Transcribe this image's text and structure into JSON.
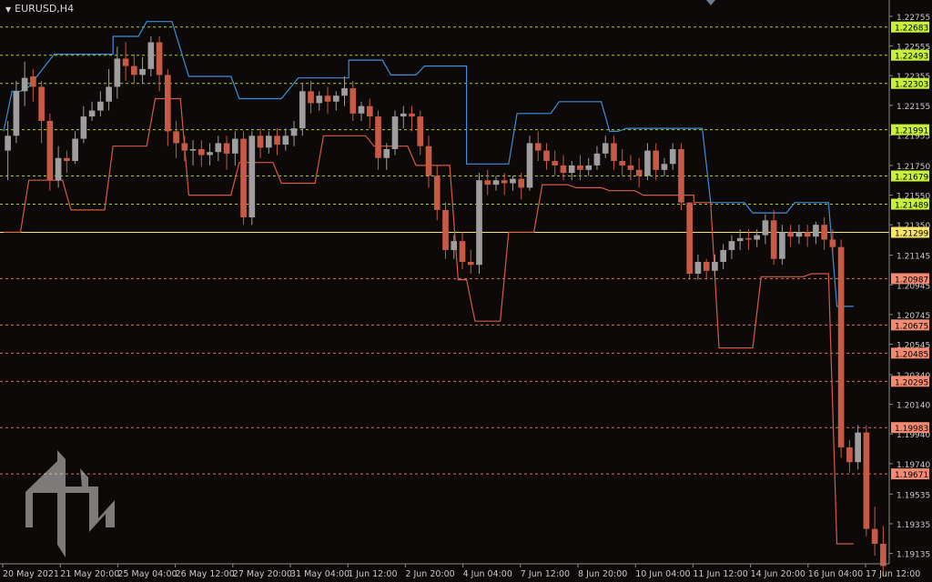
{
  "window": {
    "symbol_title": "EURUSD,H4"
  },
  "colors": {
    "background": "#0c0908",
    "bull": "#9e9e9e",
    "bear": "#c65a45",
    "upper_channel": "#3f8fd8",
    "lower_channel": "#d65a45",
    "green_level": "#c6f03a",
    "red_level": "#f28a72",
    "current_price": "#f7e56a",
    "axis_text": "#c8c8c8"
  },
  "chart_data": {
    "type": "candlestick",
    "symbol": "EURUSD",
    "timeframe": "H4",
    "ylim": [
      1.19065,
      1.22865
    ],
    "price_ticks": [
      "1.22755",
      "1.22555",
      "1.22355",
      "1.22155",
      "1.21955",
      "1.21750",
      "1.21550",
      "1.21350",
      "1.21145",
      "1.20945",
      "1.20745",
      "1.20545",
      "1.20340",
      "1.20140",
      "1.19940",
      "1.19740",
      "1.19535",
      "1.19335",
      "1.19135"
    ],
    "time_labels": [
      "20 May 2021",
      "21 May 20:00",
      "25 May 04:00",
      "26 May 12:00",
      "27 May 20:00",
      "31 May 04:00",
      "1 Jun 12:00",
      "2 Jun 20:00",
      "4 Jun 04:00",
      "7 Jun 12:00",
      "8 Jun 20:00",
      "10 Jun 04:00",
      "11 Jun 12:00",
      "14 Jun 20:00",
      "16 Jun 04:00",
      "17 Jun 12:00"
    ],
    "level_labels": {
      "green": [
        "1.22683",
        "1.22493",
        "1.22303",
        "1.21991",
        "1.21679",
        "1.21489"
      ],
      "current": "1.21299",
      "red": [
        "1.20987",
        "1.20675",
        "1.20485",
        "1.20295",
        "1.19983",
        "1.19671"
      ]
    },
    "candles": [
      [
        1.2185,
        1.2205,
        1.2195,
        1.2165
      ],
      [
        1.2195,
        1.2232,
        1.2225,
        1.219
      ],
      [
        1.2225,
        1.2245,
        1.2234,
        1.2215
      ],
      [
        1.2235,
        1.224,
        1.2228,
        1.2218
      ],
      [
        1.2228,
        1.2232,
        1.2205,
        1.219
      ],
      [
        1.2205,
        1.221,
        1.2165,
        1.2158
      ],
      [
        1.2165,
        1.2188,
        1.218,
        1.216
      ],
      [
        1.218,
        1.2185,
        1.2178,
        1.217
      ],
      [
        1.2178,
        1.2198,
        1.2193,
        1.2176
      ],
      [
        1.2193,
        1.2215,
        1.2208,
        1.219
      ],
      [
        1.2208,
        1.2218,
        1.2212,
        1.2205
      ],
      [
        1.2212,
        1.2225,
        1.2218,
        1.2208
      ],
      [
        1.2218,
        1.224,
        1.2228,
        1.2212
      ],
      [
        1.2228,
        1.2255,
        1.2247,
        1.222
      ],
      [
        1.2247,
        1.2258,
        1.2242,
        1.2232
      ],
      [
        1.2242,
        1.225,
        1.2236,
        1.223
      ],
      [
        1.2236,
        1.2248,
        1.224,
        1.223
      ],
      [
        1.224,
        1.2262,
        1.2258,
        1.2235
      ],
      [
        1.2258,
        1.2262,
        1.2236,
        1.2225
      ],
      [
        1.2236,
        1.224,
        1.2198,
        1.2188
      ],
      [
        1.2198,
        1.2205,
        1.219,
        1.218
      ],
      [
        1.219,
        1.2195,
        1.2185,
        1.2178
      ],
      [
        1.2185,
        1.2192,
        1.2186,
        1.2175
      ],
      [
        1.2186,
        1.2192,
        1.2182,
        1.2174
      ],
      [
        1.2182,
        1.219,
        1.2184,
        1.2175
      ],
      [
        1.2184,
        1.2195,
        1.219,
        1.2178
      ],
      [
        1.219,
        1.2195,
        1.2183,
        1.2172
      ],
      [
        1.2183,
        1.2198,
        1.2193,
        1.2175
      ],
      [
        1.2193,
        1.2198,
        1.214,
        1.2135
      ],
      [
        1.214,
        1.2198,
        1.2195,
        1.2135
      ],
      [
        1.2195,
        1.22,
        1.2187,
        1.218
      ],
      [
        1.2187,
        1.2198,
        1.2195,
        1.2183
      ],
      [
        1.2195,
        1.22,
        1.2189,
        1.2182
      ],
      [
        1.2189,
        1.22,
        1.2195,
        1.2185
      ],
      [
        1.2195,
        1.2205,
        1.22,
        1.2188
      ],
      [
        1.22,
        1.223,
        1.2225,
        1.2195
      ],
      [
        1.2225,
        1.2232,
        1.2217,
        1.221
      ],
      [
        1.2217,
        1.2225,
        1.2222,
        1.2212
      ],
      [
        1.2222,
        1.2228,
        1.2218,
        1.221
      ],
      [
        1.2218,
        1.2225,
        1.2222,
        1.2212
      ],
      [
        1.2222,
        1.2235,
        1.2227,
        1.2215
      ],
      [
        1.2227,
        1.2232,
        1.221,
        1.2205
      ],
      [
        1.221,
        1.2218,
        1.2215,
        1.2205
      ],
      [
        1.2215,
        1.222,
        1.2208,
        1.22
      ],
      [
        1.2208,
        1.2212,
        1.218,
        1.2172
      ],
      [
        1.218,
        1.219,
        1.2186,
        1.2172
      ],
      [
        1.2186,
        1.2212,
        1.2208,
        1.2182
      ],
      [
        1.2208,
        1.2215,
        1.221,
        1.22
      ],
      [
        1.221,
        1.2215,
        1.2208,
        1.2198
      ],
      [
        1.2208,
        1.2212,
        1.2188,
        1.2182
      ],
      [
        1.2188,
        1.2195,
        1.2168,
        1.216
      ],
      [
        1.2168,
        1.2175,
        1.2145,
        1.2138
      ],
      [
        1.2145,
        1.215,
        1.2118,
        1.2112
      ],
      [
        1.2118,
        1.2128,
        1.2124,
        1.2112
      ],
      [
        1.2124,
        1.213,
        1.211,
        1.2105
      ],
      [
        1.211,
        1.2118,
        1.2108,
        1.2102
      ],
      [
        1.2108,
        1.217,
        1.2165,
        1.2102
      ],
      [
        1.2165,
        1.2172,
        1.2162,
        1.2155
      ],
      [
        1.2162,
        1.2168,
        1.2165,
        1.2158
      ],
      [
        1.2165,
        1.217,
        1.2163,
        1.2155
      ],
      [
        1.2163,
        1.2168,
        1.2166,
        1.2158
      ],
      [
        1.2166,
        1.217,
        1.216,
        1.2152
      ],
      [
        1.216,
        1.2195,
        1.219,
        1.2158
      ],
      [
        1.219,
        1.2198,
        1.2185,
        1.2178
      ],
      [
        1.2185,
        1.219,
        1.2178,
        1.2172
      ],
      [
        1.2178,
        1.2185,
        1.2175,
        1.2168
      ],
      [
        1.2175,
        1.2182,
        1.217,
        1.2165
      ],
      [
        1.217,
        1.2178,
        1.2175,
        1.2165
      ],
      [
        1.2175,
        1.2182,
        1.2172,
        1.2165
      ],
      [
        1.2172,
        1.218,
        1.2175,
        1.2168
      ],
      [
        1.2175,
        1.2188,
        1.2183,
        1.2172
      ],
      [
        1.2183,
        1.2195,
        1.219,
        1.218
      ],
      [
        1.219,
        1.2195,
        1.2178,
        1.2172
      ],
      [
        1.2178,
        1.2186,
        1.2175,
        1.2168
      ],
      [
        1.2175,
        1.2182,
        1.2172,
        1.2165
      ],
      [
        1.2172,
        1.218,
        1.2168,
        1.216
      ],
      [
        1.2168,
        1.219,
        1.2185,
        1.2165
      ],
      [
        1.2185,
        1.219,
        1.2172,
        1.2165
      ],
      [
        1.2172,
        1.218,
        1.2176,
        1.2168
      ],
      [
        1.2176,
        1.219,
        1.2186,
        1.2172
      ],
      [
        1.2186,
        1.219,
        1.215,
        1.2145
      ],
      [
        1.215,
        1.2135,
        1.2102,
        1.2098
      ],
      [
        1.2102,
        1.2115,
        1.211,
        1.2098
      ],
      [
        1.211,
        1.2112,
        1.2104,
        1.2098
      ],
      [
        1.2104,
        1.2115,
        1.211,
        1.21
      ],
      [
        1.211,
        1.2122,
        1.2118,
        1.2105
      ],
      [
        1.2118,
        1.2128,
        1.2124,
        1.2112
      ],
      [
        1.2124,
        1.2132,
        1.2126,
        1.2118
      ],
      [
        1.2126,
        1.2132,
        1.2125,
        1.2118
      ],
      [
        1.2125,
        1.2132,
        1.2128,
        1.212
      ],
      [
        1.2128,
        1.2142,
        1.2138,
        1.2122
      ],
      [
        1.2138,
        1.2145,
        1.2112,
        1.2108
      ],
      [
        1.2112,
        1.2135,
        1.213,
        1.2108
      ],
      [
        1.213,
        1.2135,
        1.2127,
        1.212
      ],
      [
        1.2127,
        1.2135,
        1.213,
        1.2122
      ],
      [
        1.213,
        1.2135,
        1.2127,
        1.212
      ],
      [
        1.2127,
        1.2137,
        1.2135,
        1.2122
      ],
      [
        1.2135,
        1.214,
        1.2125,
        1.2118
      ],
      [
        1.2125,
        1.2132,
        1.212,
        1.2115
      ],
      [
        1.212,
        1.2125,
        1.1985,
        1.1978
      ],
      [
        1.1985,
        1.199,
        1.1975,
        1.1968
      ],
      [
        1.1975,
        1.2,
        1.1995,
        1.197
      ],
      [
        1.1995,
        1.2,
        1.193,
        1.1925
      ],
      [
        1.193,
        1.1945,
        1.192,
        1.1912
      ],
      [
        1.192,
        1.1932,
        1.1905,
        1.1898
      ]
    ],
    "upper_channel": [
      [
        0,
        1.2198
      ],
      [
        1,
        1.2225
      ],
      [
        2,
        1.2225
      ],
      [
        3,
        1.2228
      ],
      [
        6,
        1.225
      ],
      [
        13,
        1.225
      ],
      [
        13,
        1.2262
      ],
      [
        14,
        1.2262
      ],
      [
        15,
        1.2262
      ],
      [
        16,
        1.2262
      ],
      [
        17,
        1.2272
      ],
      [
        20,
        1.2272
      ],
      [
        22,
        1.2235
      ],
      [
        27,
        1.2235
      ],
      [
        28,
        1.222
      ],
      [
        33,
        1.222
      ],
      [
        35,
        1.2234
      ],
      [
        41,
        1.2234
      ],
      [
        41,
        1.2246
      ],
      [
        45,
        1.2246
      ],
      [
        46,
        1.2236
      ],
      [
        49,
        1.2236
      ],
      [
        50,
        1.2242
      ],
      [
        55,
        1.2242
      ],
      [
        55,
        1.2176
      ],
      [
        60,
        1.2176
      ],
      [
        61,
        1.221
      ],
      [
        65,
        1.221
      ],
      [
        66,
        1.2218
      ],
      [
        71,
        1.2218
      ],
      [
        72,
        1.2198
      ],
      [
        73,
        1.2198
      ],
      [
        74,
        1.22
      ],
      [
        83,
        1.22
      ],
      [
        84,
        1.215
      ],
      [
        88,
        1.215
      ],
      [
        89,
        1.2143
      ],
      [
        93,
        1.2143
      ],
      [
        94,
        1.215
      ],
      [
        98,
        1.215
      ],
      [
        99,
        1.208
      ],
      [
        101,
        1.208
      ]
    ],
    "lower_channel": [
      [
        0,
        1.213
      ],
      [
        2,
        1.213
      ],
      [
        3,
        1.2165
      ],
      [
        7,
        1.2165
      ],
      [
        8,
        1.2145
      ],
      [
        12,
        1.2145
      ],
      [
        13,
        1.2188
      ],
      [
        17,
        1.2188
      ],
      [
        18,
        1.222
      ],
      [
        21,
        1.222
      ],
      [
        22,
        1.2155
      ],
      [
        27,
        1.2155
      ],
      [
        28,
        1.2177
      ],
      [
        32,
        1.2177
      ],
      [
        33,
        1.2163
      ],
      [
        37,
        1.2163
      ],
      [
        38,
        1.2195
      ],
      [
        43,
        1.2195
      ],
      [
        44,
        1.2188
      ],
      [
        48,
        1.2188
      ],
      [
        49,
        1.2175
      ],
      [
        53,
        1.2175
      ],
      [
        54,
        1.2098
      ],
      [
        55,
        1.2098
      ],
      [
        56,
        1.207
      ],
      [
        59,
        1.207
      ],
      [
        60,
        1.213
      ],
      [
        63,
        1.213
      ],
      [
        64,
        1.2162
      ],
      [
        67,
        1.2162
      ],
      [
        68,
        1.216
      ],
      [
        71,
        1.216
      ],
      [
        72,
        1.2158
      ],
      [
        75,
        1.2158
      ],
      [
        76,
        1.2155
      ],
      [
        82,
        1.2155
      ],
      [
        82,
        1.215
      ],
      [
        84,
        1.215
      ],
      [
        85,
        1.2052
      ],
      [
        89,
        1.2052
      ],
      [
        90,
        1.21
      ],
      [
        95,
        1.21
      ],
      [
        96,
        1.2102
      ],
      [
        98,
        1.2102
      ],
      [
        99,
        1.192
      ],
      [
        101,
        1.192
      ]
    ]
  }
}
